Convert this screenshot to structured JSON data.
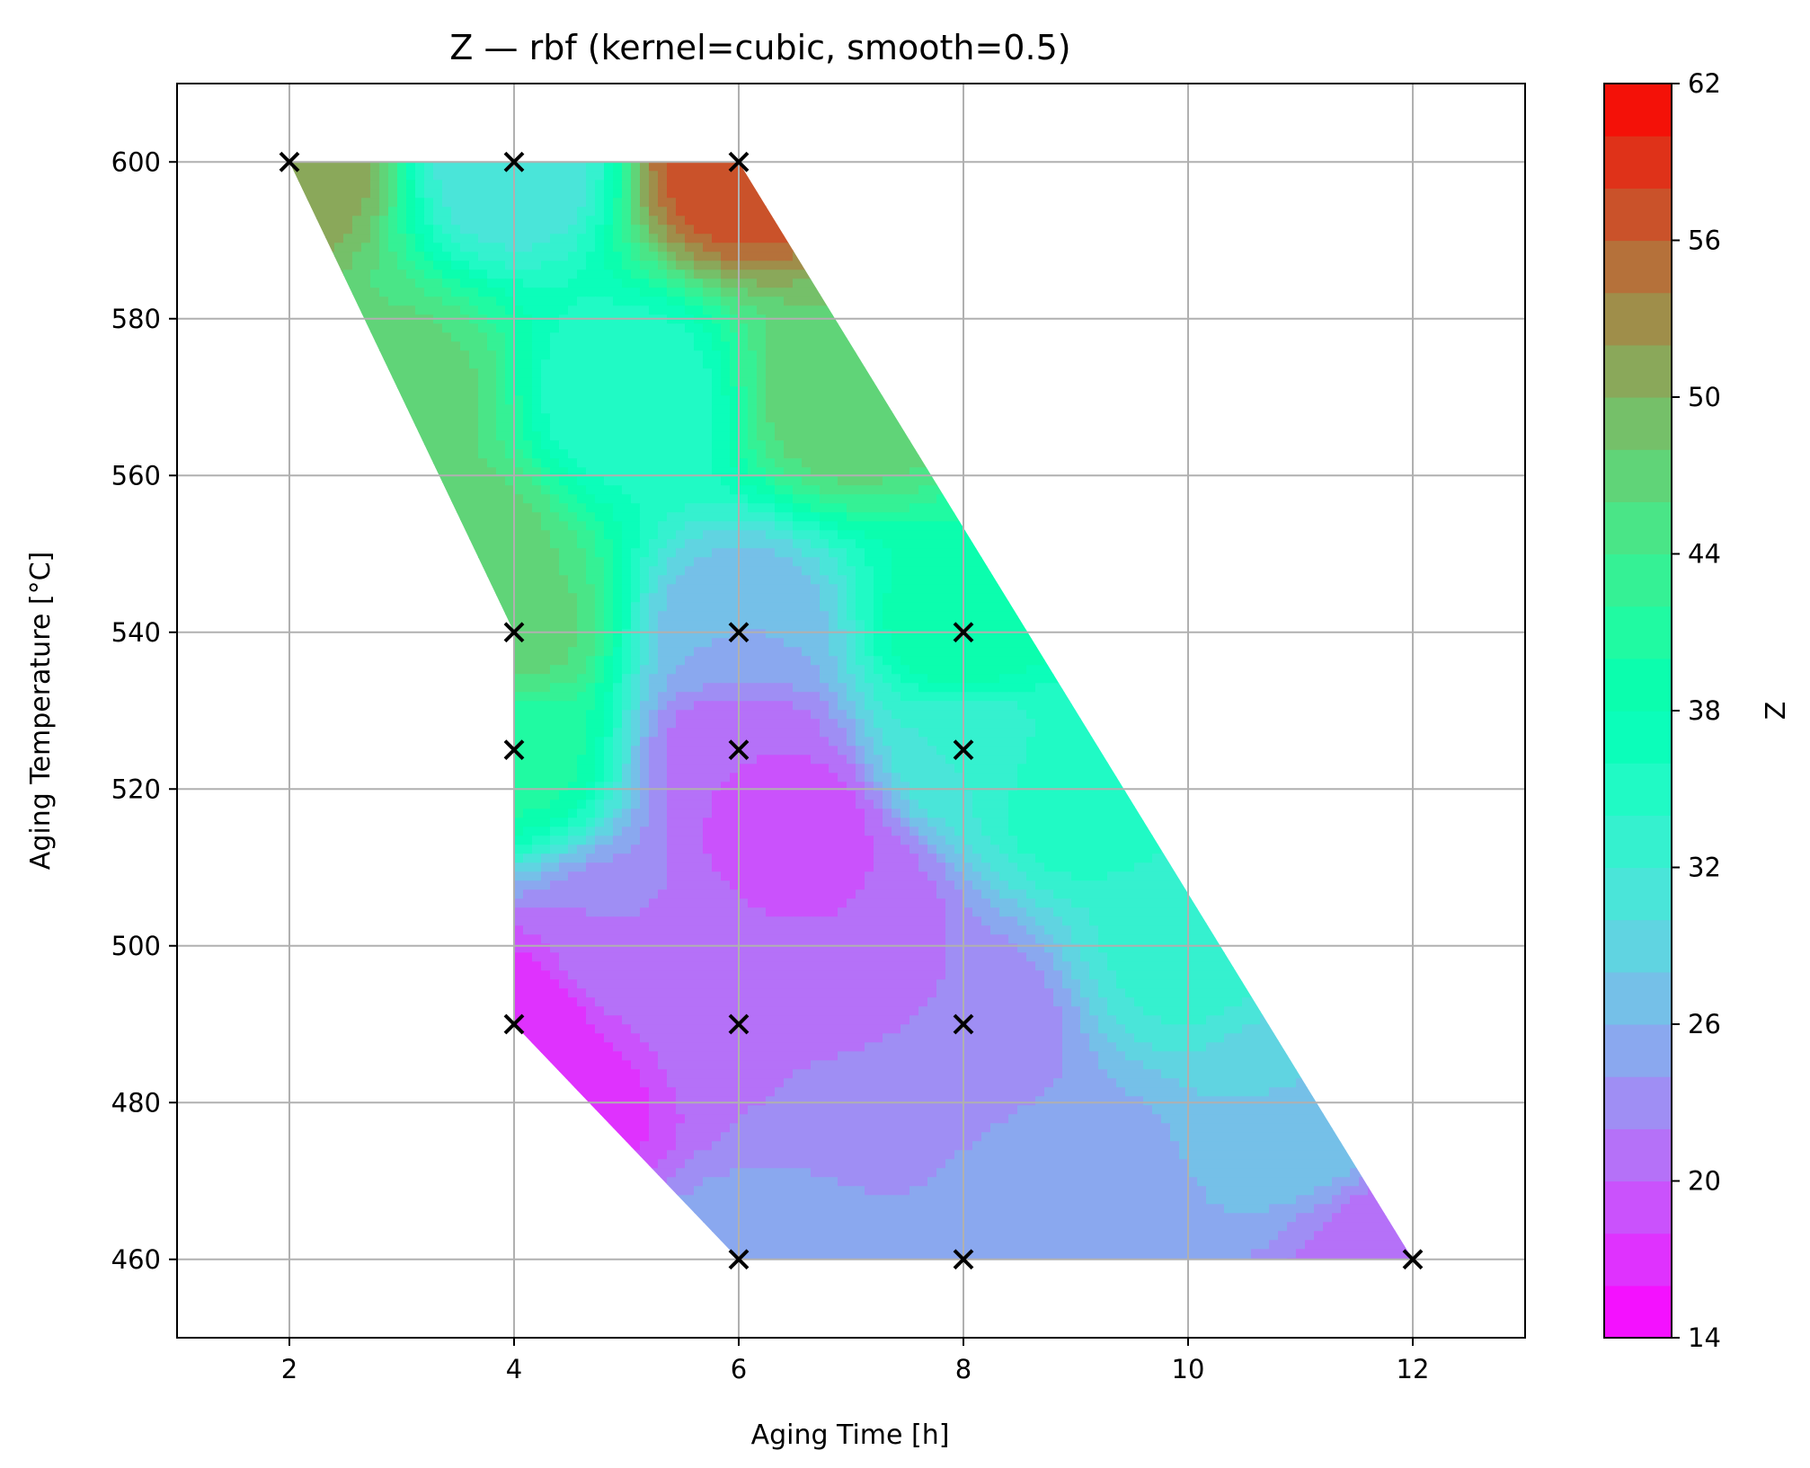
{
  "chart_data": {
    "type": "heatmap",
    "subtype": "filled contour (rbf interpolation) with sample points",
    "title": "Z — rbf (kernel=cubic, smooth=0.5)",
    "xlabel": "Aging Time [h]",
    "ylabel": "Aging Temperature [°C]",
    "colorbar_label": "Z",
    "xlim": [
      1,
      13
    ],
    "ylim": [
      450,
      610
    ],
    "x_ticks": [
      2,
      4,
      6,
      8,
      10,
      12
    ],
    "y_ticks": [
      460,
      480,
      500,
      520,
      540,
      560,
      580,
      600
    ],
    "colorbar_range": [
      14,
      62
    ],
    "colorbar_ticks": [
      14,
      20,
      26,
      32,
      38,
      44,
      50,
      56,
      62
    ],
    "colormap": "rainbow",
    "levels": 24,
    "grid": true,
    "domain_polygon": [
      [
        2,
        600
      ],
      [
        6,
        600
      ],
      [
        12,
        460
      ],
      [
        6,
        460
      ],
      [
        4,
        490
      ],
      [
        4,
        540
      ]
    ],
    "sample_points": [
      {
        "x": 2,
        "y": 600
      },
      {
        "x": 4,
        "y": 600
      },
      {
        "x": 6,
        "y": 600
      },
      {
        "x": 4,
        "y": 540
      },
      {
        "x": 6,
        "y": 540
      },
      {
        "x": 8,
        "y": 540
      },
      {
        "x": 4,
        "y": 525
      },
      {
        "x": 6,
        "y": 525
      },
      {
        "x": 8,
        "y": 525
      },
      {
        "x": 4,
        "y": 490
      },
      {
        "x": 6,
        "y": 490
      },
      {
        "x": 8,
        "y": 490
      },
      {
        "x": 6,
        "y": 460
      },
      {
        "x": 8,
        "y": 460
      },
      {
        "x": 12,
        "y": 460
      }
    ],
    "field_estimate": [
      {
        "x": 2,
        "y": 600,
        "z": 52
      },
      {
        "x": 4,
        "y": 600,
        "z": 30
      },
      {
        "x": 6,
        "y": 600,
        "z": 58
      },
      {
        "x": 4,
        "y": 540,
        "z": 47
      },
      {
        "x": 6,
        "y": 540,
        "z": 26
      },
      {
        "x": 8,
        "y": 540,
        "z": 40
      },
      {
        "x": 4,
        "y": 525,
        "z": 41
      },
      {
        "x": 6,
        "y": 525,
        "z": 20
      },
      {
        "x": 8,
        "y": 525,
        "z": 32
      },
      {
        "x": 4,
        "y": 490,
        "z": 16
      },
      {
        "x": 6,
        "y": 490,
        "z": 22
      },
      {
        "x": 8,
        "y": 490,
        "z": 22
      },
      {
        "x": 6,
        "y": 460,
        "z": 25
      },
      {
        "x": 8,
        "y": 460,
        "z": 24
      },
      {
        "x": 12,
        "y": 460,
        "z": 20
      },
      {
        "x": 3,
        "y": 570,
        "z": 47
      },
      {
        "x": 3.5,
        "y": 550,
        "z": 48
      },
      {
        "x": 6.5,
        "y": 515,
        "z": 18
      },
      {
        "x": 5,
        "y": 570,
        "z": 34
      },
      {
        "x": 7,
        "y": 570,
        "z": 48
      },
      {
        "x": 9,
        "y": 520,
        "z": 36
      },
      {
        "x": 10,
        "y": 500,
        "z": 33
      },
      {
        "x": 11,
        "y": 480,
        "z": 28
      },
      {
        "x": 5,
        "y": 500,
        "z": 22
      },
      {
        "x": 4.5,
        "y": 480,
        "z": 17
      },
      {
        "x": 9,
        "y": 470,
        "z": 25
      },
      {
        "x": 7,
        "y": 505,
        "z": 20
      }
    ]
  }
}
